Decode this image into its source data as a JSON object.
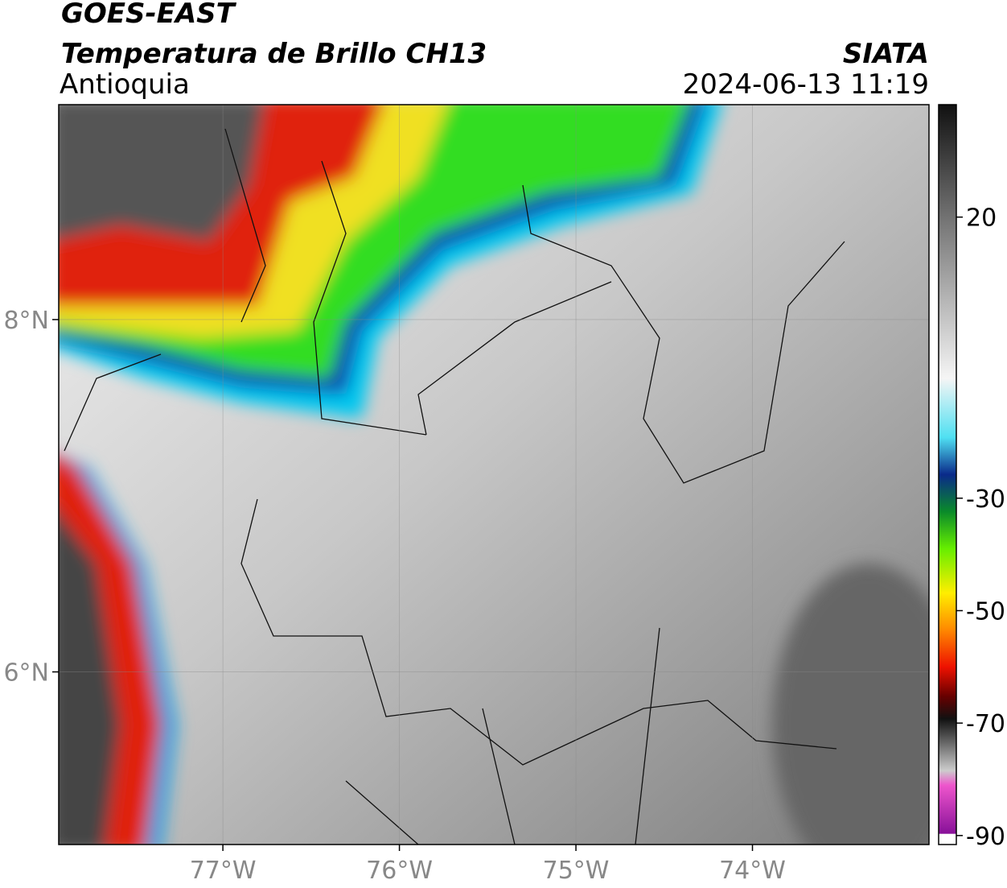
{
  "header": {
    "title": "GOES-EAST",
    "subtitle": "Temperatura de Brillo CH13",
    "region": "Antioquia",
    "source": "SIATA",
    "datetime": "2024-06-13 11:19"
  },
  "map": {
    "lon_range": [
      -77.93,
      -73.0
    ],
    "lat_range": [
      5.02,
      9.22
    ],
    "lon_ticks": [
      {
        "value": -77,
        "label": "77°W"
      },
      {
        "value": -76,
        "label": "76°W"
      },
      {
        "value": -75,
        "label": "75°W"
      },
      {
        "value": -74,
        "label": "74°W"
      }
    ],
    "lat_ticks": [
      {
        "value": 8,
        "label": "8°N"
      },
      {
        "value": 6,
        "label": "6°N"
      }
    ]
  },
  "colorbar": {
    "range": [
      -91.6,
      40
    ],
    "ticks": [
      20,
      -30,
      -50,
      -70,
      -90
    ]
  }
}
